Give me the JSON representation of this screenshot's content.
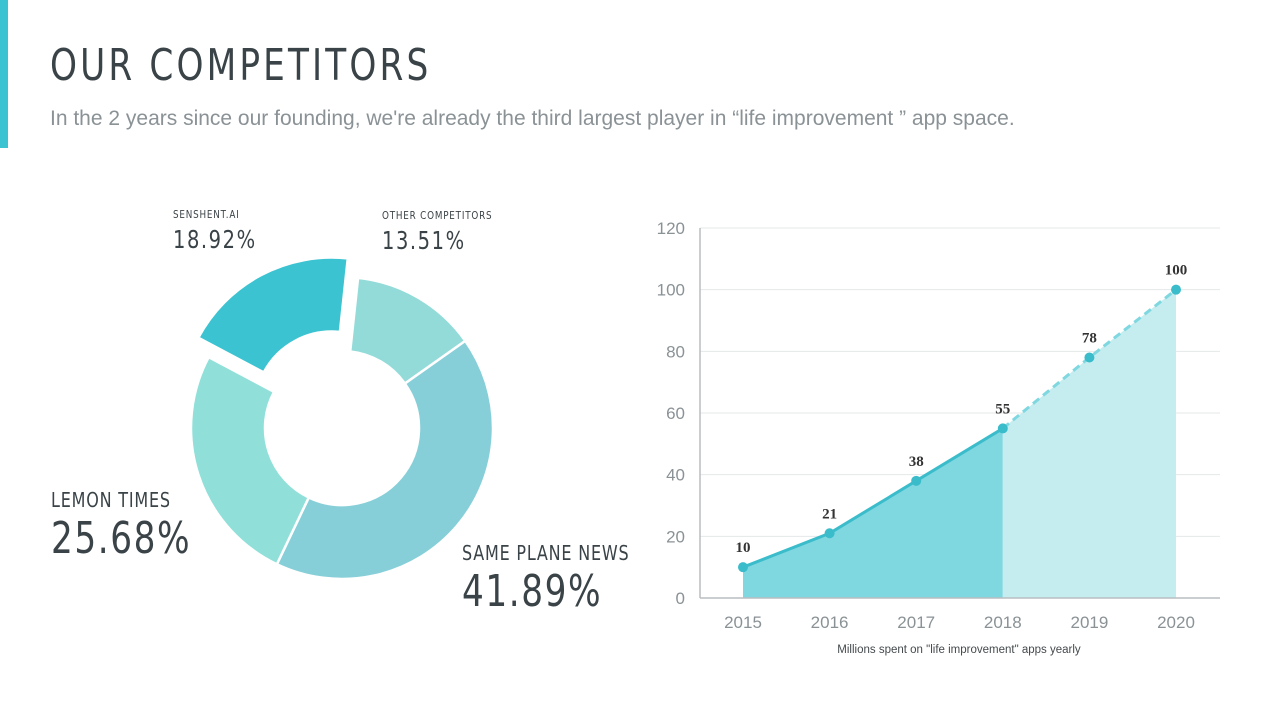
{
  "header": {
    "title": "OUR COMPETITORS",
    "subtitle": "In the 2 years since our founding, we're already the third largest player in “life improvement ” app space."
  },
  "colors": {
    "accent": "#3cc3d1",
    "title": "#3a4347",
    "subtitle": "#8a9296"
  },
  "chart_data": [
    {
      "type": "pie",
      "variant": "donut",
      "slices": [
        {
          "label": "SENSHENT.AI",
          "value": 18.92,
          "display": "18.92%",
          "color": "#3cc3d1",
          "exploded": true
        },
        {
          "label": "OTHER COMPETITORS",
          "value": 13.51,
          "display": "13.51%",
          "color": "#93dbd9"
        },
        {
          "label": "SAME PLANE NEWS",
          "value": 41.89,
          "display": "41.89%",
          "color": "#87cfd8"
        },
        {
          "label": "LEMON TIMES",
          "value": 25.68,
          "display": "25.68%",
          "color": "#90e0d9"
        }
      ]
    },
    {
      "type": "area",
      "categories": [
        "2015",
        "2016",
        "2017",
        "2018",
        "2019",
        "2020"
      ],
      "values": [
        10,
        21,
        38,
        55,
        78,
        100
      ],
      "actual_through": "2018",
      "ylim": [
        0,
        120
      ],
      "yticks": [
        0,
        20,
        40,
        60,
        80,
        100,
        120
      ],
      "xlabel": "Millions spent on \"life improvement\" apps yearly",
      "ylabel": "",
      "grid": true,
      "colors": {
        "line": "#3bbccb",
        "fill_actual": "#7fd7e0",
        "fill_projected": "#c5edf0",
        "grid": "#e4e8ea",
        "axis": "#b8bec1",
        "tick": "#8a9296",
        "value_label": "#333333"
      }
    }
  ]
}
